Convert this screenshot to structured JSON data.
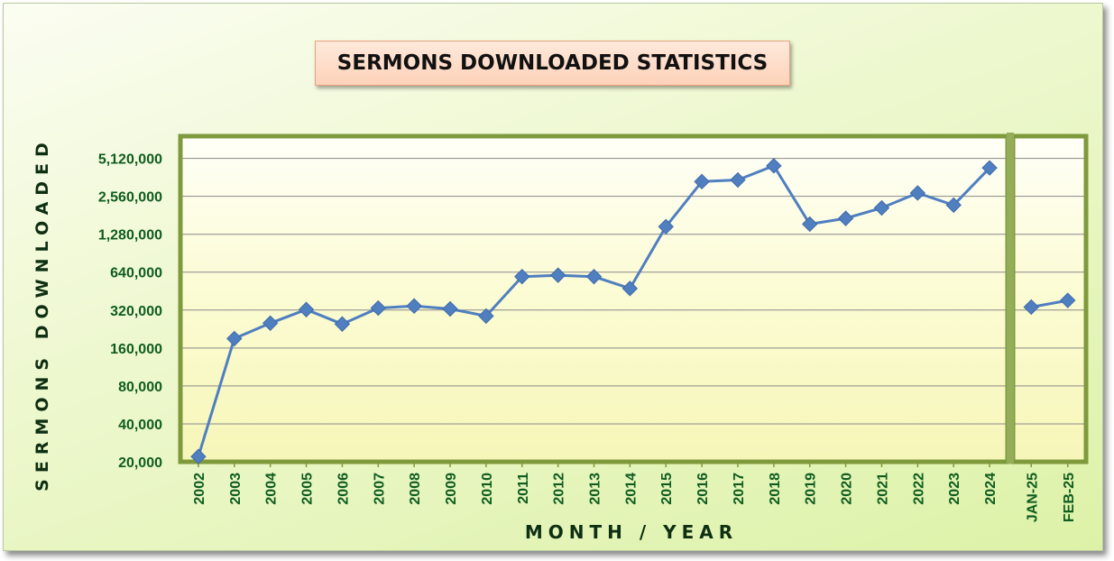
{
  "chart_data": {
    "type": "line",
    "title": "SERMONS DOWNLOADED STATISTICS",
    "xlabel": "MONTH / YEAR",
    "ylabel": "SERMONS DOWNLOADED",
    "y_scale": "log2",
    "ylim": [
      20000,
      7680000
    ],
    "y_ticks": [
      20000,
      40000,
      80000,
      160000,
      320000,
      640000,
      1280000,
      2560000,
      5120000
    ],
    "y_tick_labels": [
      "20,000",
      "40,000",
      "80,000",
      "160,000",
      "320,000",
      "640,000",
      "1,280,000",
      "2,560,000",
      "5,120,000"
    ],
    "grid": true,
    "legend": "none",
    "series_color": "#4f7fc0",
    "panels": [
      {
        "categories": [
          "2002",
          "2003",
          "2004",
          "2005",
          "2006",
          "2007",
          "2008",
          "2009",
          "2010",
          "2011",
          "2012",
          "2013",
          "2014",
          "2015",
          "2016",
          "2017",
          "2018",
          "2019",
          "2020",
          "2021",
          "2022",
          "2023",
          "2024"
        ],
        "values": [
          22000,
          190000,
          252000,
          323000,
          248000,
          332000,
          345000,
          327000,
          287000,
          590000,
          605000,
          590000,
          475000,
          1470000,
          3350000,
          3450000,
          4470000,
          1540000,
          1710000,
          2070000,
          2720000,
          2180000,
          4300000
        ]
      },
      {
        "categories": [
          "JAN-25",
          "FEB-25"
        ],
        "values": [
          338000,
          382000
        ]
      }
    ]
  }
}
